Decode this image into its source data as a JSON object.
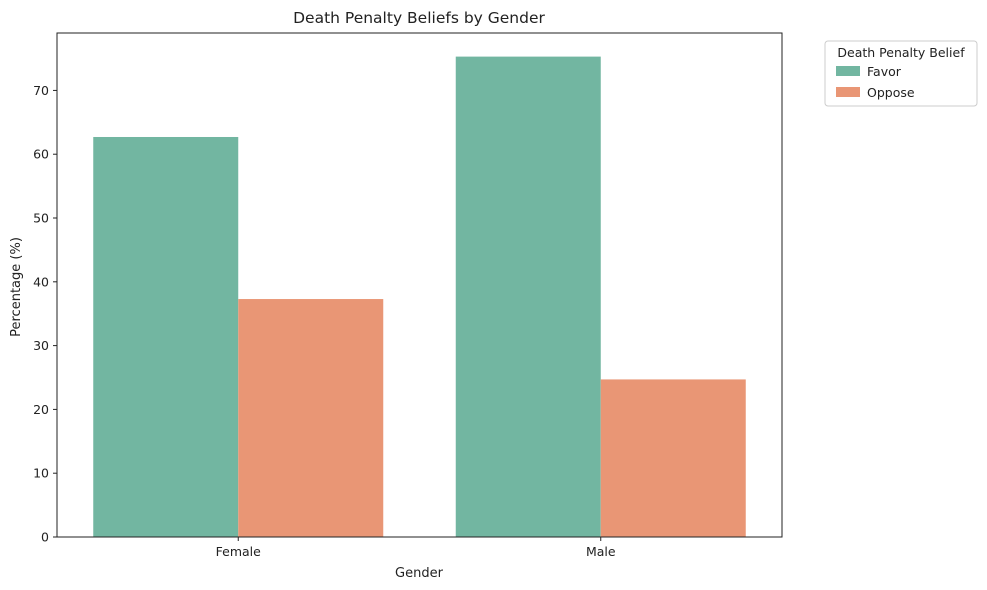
{
  "chart_data": {
    "type": "bar",
    "title": "Death Penalty Beliefs by Gender",
    "xlabel": "Gender",
    "ylabel": "Percentage (%)",
    "categories": [
      "Female",
      "Male"
    ],
    "series": [
      {
        "name": "Favor",
        "values": [
          62.7,
          75.3
        ],
        "color": "#72b6a1"
      },
      {
        "name": "Oppose",
        "values": [
          37.3,
          24.7
        ],
        "color": "#e99675"
      }
    ],
    "ylim": [
      0,
      79
    ],
    "yticks": [
      0,
      10,
      20,
      30,
      40,
      50,
      60,
      70
    ],
    "grid": false,
    "legend": {
      "title": "Death Penalty Belief",
      "placement": "outside-top-right"
    }
  }
}
